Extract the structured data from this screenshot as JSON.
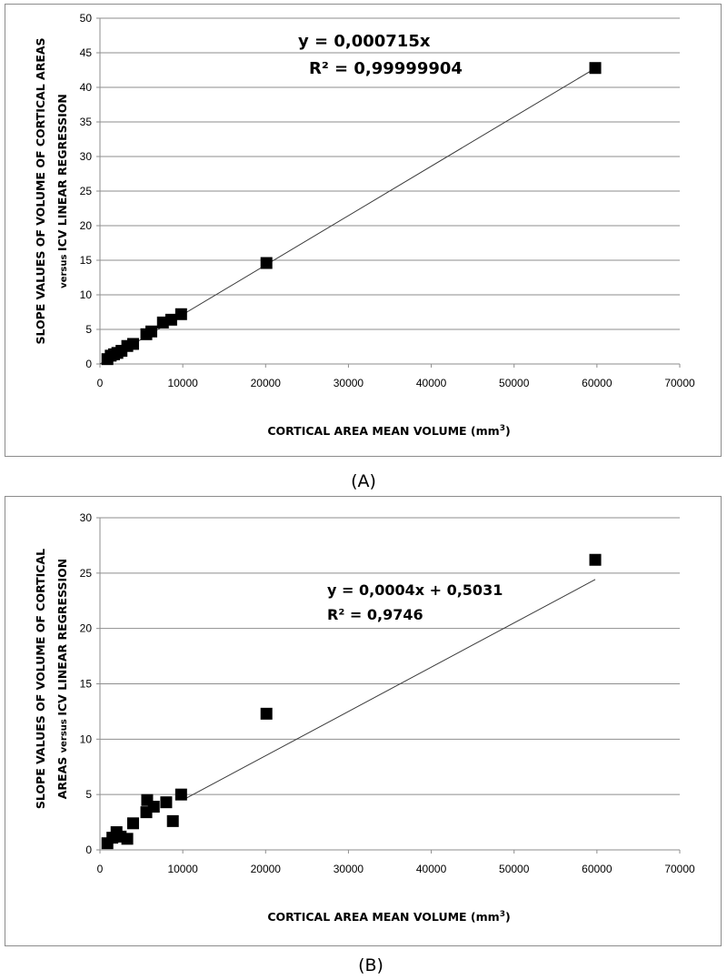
{
  "figure": {
    "caption_a": "(A)",
    "caption_b": "(B)"
  },
  "chart_data": [
    {
      "type": "scatter",
      "panel": "A",
      "xlabel": "CORTICAL AREA MEAN VOLUME (mm",
      "xlabel_sup": "3",
      "xlabel_close": ")",
      "ylabel_line1": "SLOPE VALUES OF VOLUME OF CORTICAL AREAS",
      "ylabel_line2_small": "versus",
      "ylabel_line2": "ICV LINEAR REGRESSION",
      "xlim": [
        0,
        70000
      ],
      "ylim": [
        0,
        50
      ],
      "x_ticks": [
        "0",
        "10000",
        "20000",
        "30000",
        "40000",
        "50000",
        "60000",
        "70000"
      ],
      "y_ticks": [
        "0",
        "5",
        "10",
        "15",
        "20",
        "25",
        "30",
        "35",
        "40",
        "45",
        "50"
      ],
      "grid": "horizontal",
      "trendline": {
        "equation": "y = 0,000715x",
        "r_squared": "R² = 0,99999904",
        "slope": 0.000715,
        "intercept": 0,
        "x_range": [
          0,
          59800
        ]
      },
      "series": [
        {
          "marker": "square",
          "color": "#000000",
          "x": [
            900,
            1300,
            1700,
            2100,
            2600,
            3300,
            4000,
            5600,
            6200,
            7600,
            8600,
            9800,
            20100,
            59800
          ],
          "y": [
            0.7,
            1.2,
            1.4,
            1.6,
            1.9,
            2.6,
            2.9,
            4.3,
            4.7,
            6.0,
            6.4,
            7.2,
            14.6,
            42.8
          ]
        }
      ]
    },
    {
      "type": "scatter",
      "panel": "B",
      "xlabel": "CORTICAL AREA MEAN VOLUME (mm",
      "xlabel_sup": "3",
      "xlabel_close": ")",
      "ylabel_line1": "SLOPE VALUES OF VOLUME OF CORTICAL",
      "ylabel_line2_prefix": "AREAS",
      "ylabel_line2_small": "versus",
      "ylabel_line2": "ICV LINEAR REGRESSION",
      "xlim": [
        0,
        70000
      ],
      "ylim": [
        0,
        30
      ],
      "x_ticks": [
        "0",
        "10000",
        "20000",
        "30000",
        "40000",
        "50000",
        "60000",
        "70000"
      ],
      "y_ticks": [
        "0",
        "5",
        "10",
        "15",
        "20",
        "25",
        "30"
      ],
      "grid": "horizontal",
      "trendline": {
        "equation": "y = 0,0004x + 0,5031",
        "r_squared": "R² = 0,9746",
        "slope": 0.0004,
        "intercept": 0.5031,
        "x_range": [
          10000,
          59800
        ]
      },
      "series": [
        {
          "marker": "square",
          "color": "#000000",
          "x": [
            900,
            1500,
            2000,
            2500,
            3300,
            4000,
            5600,
            5700,
            6500,
            8000,
            8800,
            9800,
            20100,
            59800
          ],
          "y": [
            0.6,
            1.1,
            1.6,
            1.2,
            1.0,
            2.4,
            3.4,
            4.5,
            3.9,
            4.3,
            2.6,
            5.0,
            12.3,
            26.2
          ]
        }
      ]
    }
  ]
}
